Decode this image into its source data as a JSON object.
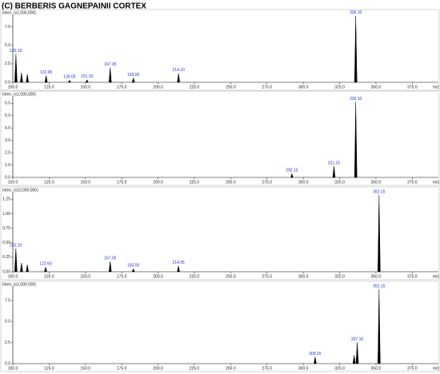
{
  "title": "(C) BERBERIS GAGNEPAINII CORTEX",
  "chart_data": [
    {
      "type": "spectrum",
      "y_label": "Inten. (x1,000,000)",
      "x_label": "m/z",
      "xlim": [
        100,
        393
      ],
      "xticks": [
        {
          "value": 100,
          "label": "100.0"
        },
        {
          "value": 125,
          "label": "125.0"
        },
        {
          "value": 150,
          "label": "150.0"
        },
        {
          "value": 175,
          "label": "175.0"
        },
        {
          "value": 200,
          "label": "200.0"
        },
        {
          "value": 225,
          "label": "225.0"
        },
        {
          "value": 250,
          "label": "250.0"
        },
        {
          "value": 275,
          "label": "275.0"
        },
        {
          "value": 300,
          "label": "300.0"
        },
        {
          "value": 325,
          "label": "325.0"
        },
        {
          "value": 350,
          "label": "350.0"
        },
        {
          "value": 375,
          "label": "375.0"
        }
      ],
      "ylim": [
        0,
        9.2
      ],
      "yticks": [
        {
          "value": 0,
          "label": "0.0"
        },
        2.5,
        {
          "value": 5,
          "label": "5.0"
        },
        7.5
      ],
      "x": [
        102.15,
        106,
        110,
        122.95,
        139.05,
        151.1,
        167.05,
        183,
        214.1,
        336.1
      ],
      "values": [
        3.8,
        1.3,
        1.1,
        0.9,
        0.3,
        0.35,
        2.0,
        0.6,
        1.2,
        9.0
      ],
      "peak_labels": [
        "102.15",
        null,
        null,
        "122.95",
        "139.05",
        "151.10",
        "167.05",
        "183.00",
        "214.10",
        "336.10"
      ]
    },
    {
      "type": "spectrum",
      "y_label": "Inten. (x1,000,000)",
      "x_label": "m/z",
      "xlim": [
        100,
        393
      ],
      "xticks": [
        {
          "value": 100,
          "label": "100.0"
        },
        {
          "value": 125,
          "label": "125.0"
        },
        {
          "value": 150,
          "label": "150.0"
        },
        {
          "value": 175,
          "label": "175.0"
        },
        {
          "value": 200,
          "label": "200.0"
        },
        {
          "value": 225,
          "label": "225.0"
        },
        {
          "value": 250,
          "label": "250.0"
        },
        {
          "value": 275,
          "label": "275.0"
        },
        {
          "value": 300,
          "label": "300.0"
        },
        {
          "value": 325,
          "label": "325.0"
        },
        {
          "value": 350,
          "label": "350.0"
        },
        {
          "value": 375,
          "label": "375.0"
        }
      ],
      "ylim": [
        0,
        6.6
      ],
      "yticks": [
        {
          "value": 0,
          "label": "0.0"
        },
        {
          "value": 1,
          "label": "1.0"
        },
        {
          "value": 2,
          "label": "2.0"
        },
        {
          "value": 3,
          "label": "3.0"
        },
        {
          "value": 4,
          "label": "4.0"
        },
        {
          "value": 5,
          "label": "5.0"
        },
        {
          "value": 6,
          "label": "6.0"
        }
      ],
      "x": [
        292.15,
        321.1,
        336.1
      ],
      "values": [
        0.3,
        0.9,
        6.1
      ],
      "peak_labels": [
        "292.15",
        "321.10",
        "336.10"
      ]
    },
    {
      "type": "spectrum",
      "y_label": "Inten. (x10,000,000)",
      "x_label": "m/z",
      "xlim": [
        100,
        393
      ],
      "xticks": [
        {
          "value": 100,
          "label": "100.0"
        },
        {
          "value": 125,
          "label": "125.0"
        },
        {
          "value": 150,
          "label": "150.0"
        },
        {
          "value": 175,
          "label": "175.0"
        },
        {
          "value": 200,
          "label": "200.0"
        },
        {
          "value": 225,
          "label": "225.0"
        },
        {
          "value": 250,
          "label": "250.0"
        },
        {
          "value": 275,
          "label": "275.0"
        },
        {
          "value": 300,
          "label": "300.0"
        },
        {
          "value": 325,
          "label": "325.0"
        },
        {
          "value": 350,
          "label": "350.0"
        },
        {
          "value": 375,
          "label": "375.0"
        }
      ],
      "ylim": [
        0,
        1.38
      ],
      "yticks": [
        {
          "value": 0,
          "label": "0.00"
        },
        0.25,
        {
          "value": 0.5,
          "label": "0.50"
        },
        0.75,
        {
          "value": 1,
          "label": "1.00"
        },
        1.25
      ],
      "x": [
        102.1,
        106,
        110,
        122.6,
        167.05,
        183,
        214.05,
        352.15
      ],
      "values": [
        0.4,
        0.15,
        0.12,
        0.08,
        0.18,
        0.05,
        0.1,
        1.32
      ],
      "peak_labels": [
        "102.10",
        null,
        null,
        "122.60",
        "167.05",
        "183.00",
        "214.05",
        "352.15"
      ]
    },
    {
      "type": "spectrum",
      "y_label": "Inten. (x1,000,000)",
      "x_label": "m/z",
      "xlim": [
        100,
        393
      ],
      "xticks": [
        {
          "value": 100,
          "label": "100.0"
        },
        {
          "value": 125,
          "label": "125.0"
        },
        {
          "value": 150,
          "label": "150.0"
        },
        {
          "value": 175,
          "label": "175.0"
        },
        {
          "value": 200,
          "label": "200.0"
        },
        {
          "value": 225,
          "label": "225.0"
        },
        {
          "value": 250,
          "label": "250.0"
        },
        {
          "value": 275,
          "label": "275.0"
        },
        {
          "value": 300,
          "label": "300.0"
        },
        {
          "value": 325,
          "label": "325.0"
        },
        {
          "value": 350,
          "label": "350.0"
        },
        {
          "value": 375,
          "label": "375.0"
        }
      ],
      "ylim": [
        0,
        9.2
      ],
      "yticks": [
        {
          "value": 0,
          "label": "0.0"
        },
        2.5,
        {
          "value": 5,
          "label": "5.0"
        },
        7.5
      ],
      "x": [
        308.15,
        335,
        337.1,
        352.15
      ],
      "values": [
        0.8,
        1.0,
        2.5,
        8.8
      ],
      "peak_labels": [
        "308.15",
        null,
        "337.10",
        "352.15"
      ]
    }
  ]
}
